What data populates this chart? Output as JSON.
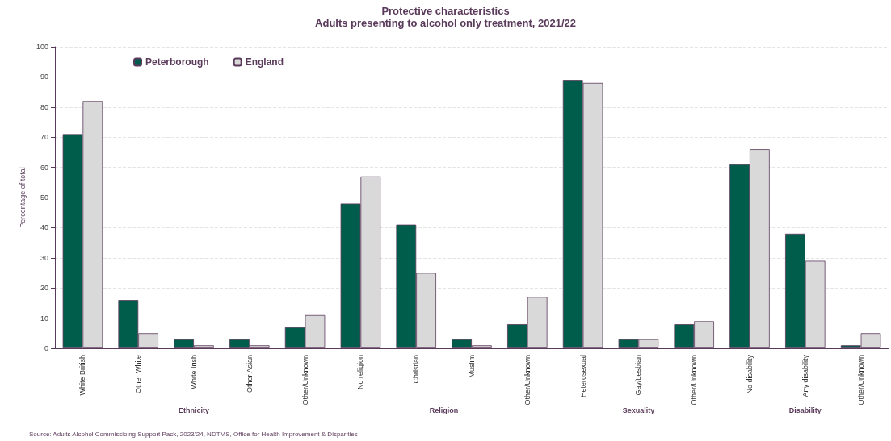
{
  "chart_data": {
    "type": "bar",
    "title": "Protective characteristics",
    "subtitle": "Adults presenting to alcohol only treatment, 2021/22",
    "ylabel": "Percentage of total",
    "categories": [
      "White British",
      "Other White",
      "White Irish",
      "Other Asian",
      "Other/Unknown",
      "No religion",
      "Christian",
      "Muslim",
      "Other/Unknown",
      "Heterosexual",
      "Gay/Lesbian",
      "Other/Unknown",
      "No disability",
      "Any disability",
      "Other/Unknown"
    ],
    "series": [
      {
        "name": "Peterborough",
        "color": "#005c4b",
        "values": [
          71,
          16,
          3,
          3,
          7,
          48,
          41,
          3,
          8,
          89,
          3,
          8,
          61,
          38,
          1
        ]
      },
      {
        "name": "England",
        "color": "#d9d9d9",
        "values": [
          82,
          5,
          1,
          1,
          11,
          57,
          25,
          1,
          17,
          88,
          3,
          9,
          66,
          29,
          5
        ]
      }
    ],
    "ylim": [
      0,
      100
    ],
    "yticks": [
      0,
      10,
      20,
      30,
      40,
      50,
      60,
      70,
      80,
      90,
      100
    ],
    "grid": "y",
    "legend": "top left",
    "annotations": [
      "Ethnicity",
      "Religion",
      "Sexuality",
      "Disability",
      "Source: Adults Alcohol Commissioing Support Pack, 2023/24, NDTMS, Office for Health Improvement & Disparities"
    ]
  }
}
